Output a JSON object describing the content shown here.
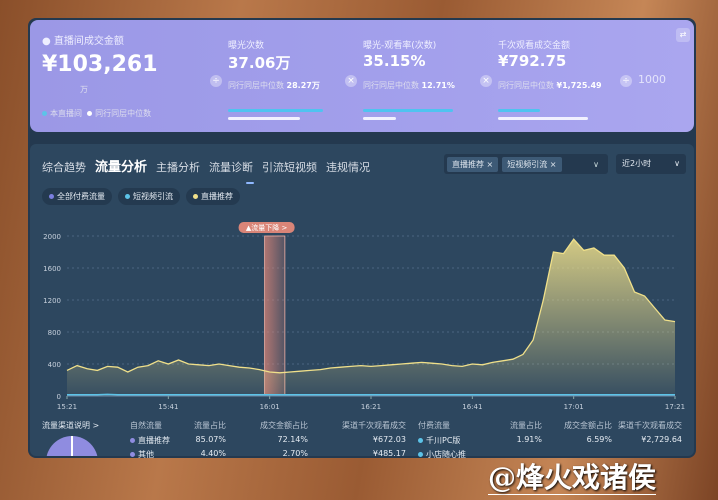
{
  "summary": {
    "title": "直播间成交金额",
    "value": "¥103,261",
    "unit": "万",
    "legend_self": "本直播间",
    "legend_peer": "同行同层中位数",
    "metrics": [
      {
        "label": "曝光次数",
        "value": "37.06万",
        "peer_label": "同行同层中位数",
        "peer_value": "28.27万",
        "op": "÷",
        "self_fill": 0.95,
        "peer_fill": 0.72
      },
      {
        "label": "曝光-观看率(次数)",
        "value": "35.15%",
        "peer_label": "同行同层中位数",
        "peer_value": "12.71%",
        "op": "×",
        "self_fill": 0.9,
        "peer_fill": 0.33
      },
      {
        "label": "千次观看成交金额",
        "value": "¥792.75",
        "peer_label": "同行同层中位数",
        "peer_value": "¥1,725.49",
        "op": "×",
        "self_fill": 0.42,
        "peer_fill": 0.9
      }
    ],
    "divide_op": "÷",
    "divisor": "1000",
    "swap_icon": "swap-icon"
  },
  "tabs": [
    {
      "label": "综合趋势"
    },
    {
      "label": "流量分析",
      "active": true
    },
    {
      "label": "主播分析"
    },
    {
      "label": "流量诊断"
    },
    {
      "label": "引流短视频"
    },
    {
      "label": "违规情况"
    }
  ],
  "filters": {
    "chips": [
      "直播推荐 ×",
      "短视频引流 ×"
    ],
    "time_range": "近2小时"
  },
  "legend": [
    {
      "label": "全部付费流量",
      "color": "#7b7fe0"
    },
    {
      "label": "短视频引流",
      "color": "#5cc3e8"
    },
    {
      "label": "直播推荐",
      "color": "#f0e08a"
    }
  ],
  "chart_data": {
    "type": "area",
    "annotation": {
      "label": "▲流量下降 >",
      "from": "16:00",
      "to": "16:04"
    },
    "ylim": [
      0,
      2000
    ],
    "yticks": [
      "0",
      "400",
      "800",
      "1200",
      "1600",
      "2000"
    ],
    "xticks": [
      "15:21",
      "15:41",
      "16:01",
      "16:21",
      "16:41",
      "17:01",
      "17:21"
    ],
    "grid": true,
    "x": [
      "15:21",
      "15:23",
      "15:25",
      "15:27",
      "15:29",
      "15:31",
      "15:33",
      "15:35",
      "15:37",
      "15:39",
      "15:41",
      "15:43",
      "15:45",
      "15:47",
      "15:49",
      "15:51",
      "15:53",
      "15:55",
      "15:57",
      "15:59",
      "16:01",
      "16:03",
      "16:05",
      "16:07",
      "16:09",
      "16:11",
      "16:13",
      "16:15",
      "16:17",
      "16:19",
      "16:21",
      "16:23",
      "16:25",
      "16:27",
      "16:29",
      "16:31",
      "16:33",
      "16:35",
      "16:37",
      "16:39",
      "16:41",
      "16:43",
      "16:45",
      "16:47",
      "16:49",
      "16:51",
      "16:53",
      "16:55",
      "16:57",
      "16:59",
      "17:01",
      "17:03",
      "17:05",
      "17:07",
      "17:09",
      "17:11",
      "17:13",
      "17:15",
      "17:17",
      "17:19",
      "17:21"
    ],
    "series": [
      {
        "name": "直播推荐",
        "color": "#f0e08a",
        "values": [
          320,
          380,
          340,
          320,
          370,
          360,
          300,
          360,
          380,
          440,
          400,
          450,
          400,
          390,
          380,
          400,
          380,
          360,
          350,
          330,
          300,
          290,
          300,
          310,
          320,
          330,
          350,
          360,
          370,
          380,
          370,
          380,
          390,
          400,
          410,
          420,
          410,
          400,
          380,
          370,
          400,
          390,
          420,
          440,
          460,
          520,
          700,
          1200,
          1800,
          1780,
          1960,
          1820,
          1850,
          1760,
          1760,
          1600,
          1300,
          1250,
          1100,
          950,
          930
        ]
      },
      {
        "name": "短视频引流",
        "color": "#5cc3e8",
        "values": [
          15,
          15,
          15,
          15,
          20,
          15,
          15,
          15,
          15,
          15,
          15,
          15,
          15,
          15,
          15,
          15,
          15,
          15,
          15,
          15,
          15,
          15,
          15,
          15,
          15,
          15,
          15,
          15,
          15,
          15,
          15,
          15,
          15,
          15,
          15,
          15,
          15,
          15,
          15,
          15,
          15,
          15,
          15,
          15,
          15,
          15,
          15,
          15,
          15,
          15,
          15,
          15,
          15,
          15,
          15,
          15,
          15,
          15,
          15,
          15,
          15
        ]
      }
    ]
  },
  "table": {
    "channel_link": "流量渠道说明 >",
    "natural_header": [
      "自然流量",
      "流量占比",
      "成交金额占比",
      "渠道千次观看成交"
    ],
    "natural_rows": [
      [
        "直播推荐",
        "85.07%",
        "72.14%",
        "¥672.03"
      ],
      [
        "其他",
        "4.40%",
        "2.70%",
        "¥485.17"
      ]
    ],
    "paid_header": [
      "付费流量",
      "流量占比",
      "成交金额占比",
      "渠道千次观看成交"
    ],
    "paid_rows": [
      [
        "千川PC版",
        "1.91%",
        "6.59%",
        "¥2,729.64"
      ],
      [
        "小店随心推",
        "",
        "",
        ""
      ]
    ]
  },
  "watermark": "@烽火戏诸侯"
}
